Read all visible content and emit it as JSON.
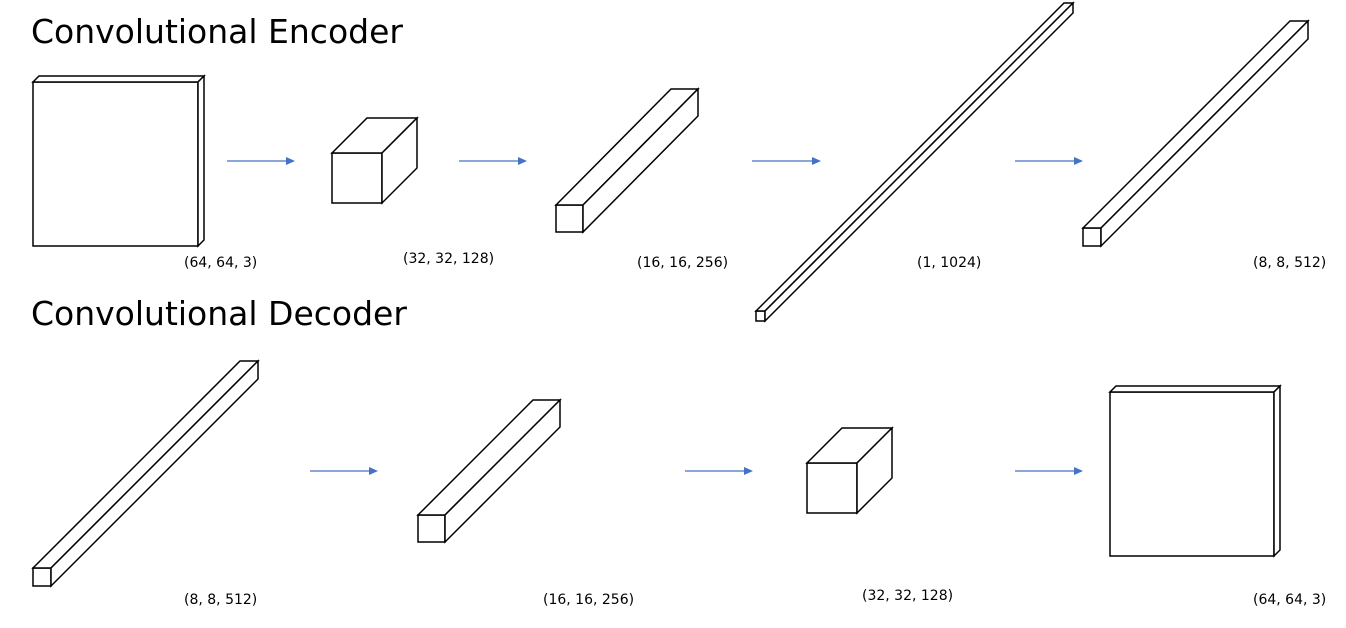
{
  "encoder": {
    "title": "Convolutional Encoder",
    "labels": [
      "(64, 64, 3)",
      "(32, 32, 128)",
      "(16, 16, 256)",
      "(1, 1024)",
      "(8, 8, 512)"
    ]
  },
  "decoder": {
    "title": "Convolutional Decoder",
    "labels": [
      "(8, 8, 512)",
      "(16, 16, 256)",
      "(32, 32, 128)",
      "(64, 64, 3)"
    ]
  },
  "colors": {
    "arrow": "#4472c4",
    "outline": "#000000",
    "fill": "#ffffff"
  }
}
